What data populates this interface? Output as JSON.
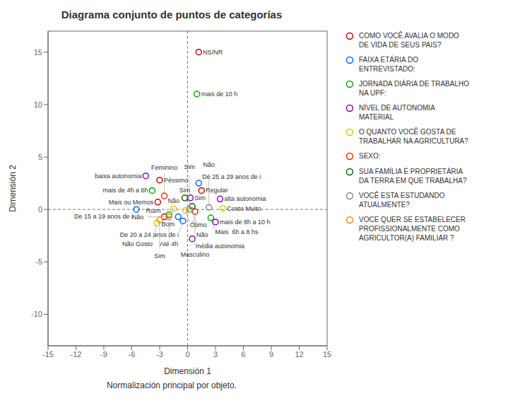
{
  "chart_data": {
    "type": "scatter",
    "title": "Diagrama conjunto de puntos de categorías",
    "subtitle": "Normalización principal por objeto.",
    "xlabel": "Dimensión 1",
    "ylabel": "Dimensión 2",
    "xlim": [
      -15,
      15
    ],
    "ylim": [
      -13,
      17
    ],
    "xticks": [
      -15,
      -12,
      -9,
      -6,
      -3,
      0,
      3,
      6,
      9,
      12,
      15
    ],
    "yticks": [
      -10,
      -5,
      0,
      5,
      10,
      15
    ],
    "grid": false,
    "legend": "right",
    "series": [
      {
        "name": "COMO VOCÊ AVALIA O MODO\nDE VIDA DE SEUS PAIS?",
        "color": "#cc0000",
        "x": [
          1.2,
          -3.0,
          1.5,
          -3.2,
          -2.5
        ],
        "y": [
          15.0,
          2.8,
          1.8,
          0.7,
          -0.7
        ],
        "labels": [
          "NS/NR",
          "Péssimo",
          "Regular",
          "Mais ou Memos",
          "Ruim"
        ]
      },
      {
        "name": "FAIXA ETÁRIA DO\nENTREVISTADO:",
        "color": "#0066ff",
        "x": [
          1.2,
          -5.5,
          -1.0,
          -0.5
        ],
        "y": [
          2.5,
          0.0,
          -0.7,
          -1.1
        ],
        "labels": [
          "De 25 a 29 anos de i",
          "De 15 a 19 anos de i",
          "Bom",
          "De 20 a 24 anos de i"
        ]
      },
      {
        "name": "JORNADA DIÁRIA DE TRABALHO\nNA UPF:",
        "color": "#00aa00",
        "x": [
          1.0,
          -3.8,
          -2.0,
          2.5
        ],
        "y": [
          11.0,
          1.8,
          -0.5,
          -0.8
        ],
        "labels": [
          "mais de 10 h",
          "mais de 4h a 6h",
          "Até 4h",
          "Mais  6h a 8 hs"
        ]
      },
      {
        "name": "NÍVEL DE AUTONOMIA\nMATERIAL",
        "color": "#8800bb",
        "x": [
          -4.5,
          0.3,
          3.5,
          3.0,
          0.5
        ],
        "y": [
          3.2,
          1.1,
          1.0,
          -1.2,
          -2.8
        ],
        "labels": [
          "baixa autonomia",
          "Sim",
          "alta autonomia",
          "mais de 8h a 10 h",
          "média autonomia"
        ]
      },
      {
        "name": "O QUANTO VOCÊ GOSTA DE\nTRABALHAR NA AGRICULTURA?",
        "color": "#ddcc00",
        "x": [
          3.8,
          -1.5,
          -0.2,
          -3.3
        ],
        "y": [
          0.1,
          0.05,
          -0.1,
          -1.3
        ],
        "labels": [
          "Costo Muito",
          "Não",
          "Ótimo",
          "Não Gosto"
        ]
      },
      {
        "name": "SEXO:",
        "color": "#ff2200",
        "x": [
          -2.5,
          0.8
        ],
        "y": [
          1.3,
          -0.2
        ],
        "labels": [
          "Feminino",
          "Masculino"
        ]
      },
      {
        "name": "SUA FAMÍLIA É PROPRIETÁRIA\nDA TERRA EM QUE TRABALHA?",
        "color": "#006600",
        "x": [
          -0.3,
          0.5
        ],
        "y": [
          1.1,
          0.3
        ],
        "labels": [
          "Sim",
          "Não"
        ]
      },
      {
        "name": "VOCÊ ESTA ESTUDANDO\nATUALMENTE?",
        "color": "#888888",
        "x": [
          2.3,
          0.2
        ],
        "y": [
          0.2,
          0.0
        ],
        "labels": [
          "Não",
          "Sim"
        ]
      },
      {
        "name": "VOCE QUER SE ESTABELECER\nPROFISSIONALMENTE COMO\nAGRICULTOR(A) FAMILIAR ?",
        "color": "#ff8800",
        "x": [
          -2.0,
          -3.0
        ],
        "y": [
          -0.7,
          -1.0
        ],
        "labels": [
          "Não",
          "Sim"
        ]
      }
    ]
  }
}
